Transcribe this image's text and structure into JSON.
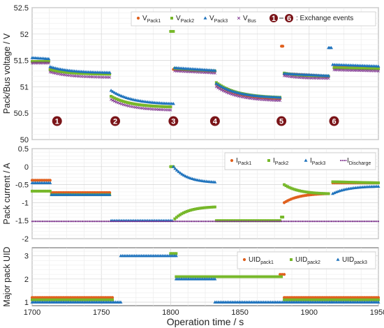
{
  "chart_data": [
    {
      "type": "scatter",
      "ylabel": "Pack/Bus voltage / V",
      "ylim": [
        50,
        52.5
      ],
      "yticks": [
        "50",
        "50.5",
        "51",
        "51.5",
        "52",
        "52.5"
      ],
      "grid": true,
      "legend_position": "top-right",
      "legend_items": [
        {
          "name": "V",
          "sub": "Pack1",
          "marker": "circle",
          "color": "#e0601e"
        },
        {
          "name": "V",
          "sub": "Pack2",
          "marker": "square",
          "color": "#77b82a"
        },
        {
          "name": "V",
          "sub": "Pack3",
          "marker": "triangle",
          "color": "#1f73bd"
        },
        {
          "name": "V",
          "sub": "Bus",
          "marker": "cross",
          "color": "#7a2d8b"
        }
      ],
      "legend_events_range": [
        "1",
        "6"
      ],
      "legend_events_text": ": Exchange events",
      "events": [
        {
          "label": "1",
          "x": 1718,
          "y": 50.35
        },
        {
          "label": "2",
          "x": 1760,
          "y": 50.35
        },
        {
          "label": "3",
          "x": 1802,
          "y": 50.35
        },
        {
          "label": "4",
          "x": 1832,
          "y": 50.35
        },
        {
          "label": "5",
          "x": 1880,
          "y": 50.35
        },
        {
          "label": "6",
          "x": 1918,
          "y": 50.35
        }
      ],
      "series": [
        {
          "name": "VPack1",
          "color": "#e0601e",
          "marker": "circle",
          "segments": [
            {
              "x0": 1700,
              "x1": 1712,
              "y0": 51.48,
              "y1": 51.48
            },
            {
              "x0": 1713,
              "x1": 1756,
              "y0": 51.33,
              "y1": 51.25
            },
            {
              "x0": 1757,
              "x1": 1800,
              "y0": 50.82,
              "y1": 50.62
            },
            {
              "x0": 1802,
              "x1": 1832,
              "y0": 51.33,
              "y1": 51.3
            },
            {
              "x0": 1833,
              "x1": 1879,
              "y0": 51.05,
              "y1": 50.78
            },
            {
              "x0": 1880,
              "x1": 1881,
              "y0": 51.77,
              "y1": 51.77
            },
            {
              "x0": 1882,
              "x1": 1914,
              "y0": 51.25,
              "y1": 51.2
            },
            {
              "x0": 1918,
              "x1": 1950,
              "y0": 51.37,
              "y1": 51.35
            }
          ]
        },
        {
          "name": "VPack2",
          "color": "#77b82a",
          "marker": "square",
          "segments": [
            {
              "x0": 1700,
              "x1": 1712,
              "y0": 51.48,
              "y1": 51.48
            },
            {
              "x0": 1713,
              "x1": 1756,
              "y0": 51.32,
              "y1": 51.24
            },
            {
              "x0": 1757,
              "x1": 1800,
              "y0": 50.82,
              "y1": 50.62
            },
            {
              "x0": 1800,
              "x1": 1802,
              "y0": 52.05,
              "y1": 52.05
            },
            {
              "x0": 1803,
              "x1": 1832,
              "y0": 51.35,
              "y1": 51.3
            },
            {
              "x0": 1833,
              "x1": 1879,
              "y0": 51.08,
              "y1": 50.8
            },
            {
              "x0": 1882,
              "x1": 1914,
              "y0": 51.26,
              "y1": 51.2
            },
            {
              "x0": 1918,
              "x1": 1950,
              "y0": 51.36,
              "y1": 51.34
            }
          ]
        },
        {
          "name": "VPack3",
          "color": "#1f73bd",
          "marker": "triangle",
          "segments": [
            {
              "x0": 1700,
              "x1": 1712,
              "y0": 51.55,
              "y1": 51.53
            },
            {
              "x0": 1713,
              "x1": 1756,
              "y0": 51.38,
              "y1": 51.27
            },
            {
              "x0": 1757,
              "x1": 1802,
              "y0": 50.93,
              "y1": 50.68
            },
            {
              "x0": 1803,
              "x1": 1832,
              "y0": 51.36,
              "y1": 51.31
            },
            {
              "x0": 1833,
              "x1": 1879,
              "y0": 51.06,
              "y1": 50.8
            },
            {
              "x0": 1882,
              "x1": 1914,
              "y0": 51.25,
              "y1": 51.21
            },
            {
              "x0": 1914,
              "x1": 1916,
              "y0": 51.74,
              "y1": 51.74
            },
            {
              "x0": 1917,
              "x1": 1950,
              "y0": 51.42,
              "y1": 51.39
            }
          ]
        },
        {
          "name": "VBus",
          "color": "#7a2d8b",
          "marker": "cross",
          "segments": [
            {
              "x0": 1700,
              "x1": 1712,
              "y0": 51.45,
              "y1": 51.45
            },
            {
              "x0": 1713,
              "x1": 1756,
              "y0": 51.28,
              "y1": 51.18
            },
            {
              "x0": 1757,
              "x1": 1800,
              "y0": 50.76,
              "y1": 50.56
            },
            {
              "x0": 1803,
              "x1": 1832,
              "y0": 51.3,
              "y1": 51.26
            },
            {
              "x0": 1833,
              "x1": 1879,
              "y0": 51.0,
              "y1": 50.74
            },
            {
              "x0": 1882,
              "x1": 1914,
              "y0": 51.21,
              "y1": 51.16
            },
            {
              "x0": 1918,
              "x1": 1950,
              "y0": 51.32,
              "y1": 51.3
            }
          ]
        }
      ]
    },
    {
      "type": "scatter",
      "ylabel": "Pack current / A",
      "ylim": [
        -2,
        0.5
      ],
      "yticks": [
        "-2",
        "-1.5",
        "-1",
        "-0.5",
        "0",
        "0.5"
      ],
      "grid": true,
      "legend_position": "top-right",
      "legend_items": [
        {
          "name": "I",
          "sub": "Pack1",
          "marker": "circle",
          "color": "#e0601e"
        },
        {
          "name": "I",
          "sub": "Pack2",
          "marker": "square",
          "color": "#77b82a"
        },
        {
          "name": "I",
          "sub": "Pack3",
          "marker": "triangle",
          "color": "#1f73bd"
        },
        {
          "name": "I",
          "sub": "Discharge",
          "marker": "dotted",
          "color": "#7a2d8b"
        }
      ],
      "series": [
        {
          "name": "IPack1",
          "color": "#e0601e",
          "marker": "circle",
          "segments": [
            {
              "x0": 1700,
              "x1": 1713,
              "y0": -0.38,
              "y1": -0.38
            },
            {
              "x0": 1714,
              "x1": 1756,
              "y0": -0.72,
              "y1": -0.72
            },
            {
              "x0": 1880,
              "x1": 1881,
              "y0": 0.0,
              "y1": 0.0
            },
            {
              "x0": 1882,
              "x1": 1914,
              "y0": -1.0,
              "y1": -0.75
            },
            {
              "x0": 1917,
              "x1": 1950,
              "y0": -0.45,
              "y1": -0.45
            }
          ]
        },
        {
          "name": "IPack2",
          "color": "#77b82a",
          "marker": "square",
          "segments": [
            {
              "x0": 1700,
              "x1": 1713,
              "y0": -0.68,
              "y1": -0.68
            },
            {
              "x0": 1714,
              "x1": 1756,
              "y0": -0.78,
              "y1": -0.78
            },
            {
              "x0": 1800,
              "x1": 1802,
              "y0": 0.0,
              "y1": 0.0
            },
            {
              "x0": 1803,
              "x1": 1832,
              "y0": -1.45,
              "y1": -1.12
            },
            {
              "x0": 1833,
              "x1": 1879,
              "y0": -1.5,
              "y1": -1.5
            },
            {
              "x0": 1880,
              "x1": 1881,
              "y0": -1.4,
              "y1": -1.4
            },
            {
              "x0": 1882,
              "x1": 1914,
              "y0": -0.5,
              "y1": -0.75
            },
            {
              "x0": 1917,
              "x1": 1950,
              "y0": -0.42,
              "y1": -0.45
            }
          ]
        },
        {
          "name": "IPack3",
          "color": "#1f73bd",
          "marker": "triangle",
          "segments": [
            {
              "x0": 1700,
              "x1": 1713,
              "y0": -0.45,
              "y1": -0.45
            },
            {
              "x0": 1714,
              "x1": 1756,
              "y0": -0.78,
              "y1": -0.78
            },
            {
              "x0": 1757,
              "x1": 1801,
              "y0": -1.5,
              "y1": -1.5
            },
            {
              "x0": 1802,
              "x1": 1832,
              "y0": 0.0,
              "y1": -0.43
            },
            {
              "x0": 1914,
              "x1": 1916,
              "y0": 0.0,
              "y1": 0.0
            },
            {
              "x0": 1917,
              "x1": 1950,
              "y0": -0.75,
              "y1": -0.55
            }
          ]
        },
        {
          "name": "IDischarge",
          "color": "#7a2d8b",
          "marker": "dot",
          "segments": [
            {
              "x0": 1700,
              "x1": 1950,
              "y0": -1.52,
              "y1": -1.52
            }
          ]
        }
      ]
    },
    {
      "type": "scatter",
      "ylabel": "Major pack UID",
      "xlabel": "Operation time / s",
      "xlim": [
        1700,
        1950
      ],
      "xticks": [
        "1700",
        "1750",
        "1800",
        "1850",
        "1900",
        "1950"
      ],
      "ylim": [
        0.85,
        3.35
      ],
      "yticks": [
        "1",
        "2",
        "3"
      ],
      "grid": true,
      "legend_position": "top-right",
      "legend_items": [
        {
          "name": "UID",
          "sub": "pack1",
          "marker": "circle",
          "color": "#e0601e"
        },
        {
          "name": "UID",
          "sub": "pack2",
          "marker": "square",
          "color": "#77b82a"
        },
        {
          "name": "UID",
          "sub": "pack3",
          "marker": "triangle",
          "color": "#1f73bd"
        }
      ],
      "series": [
        {
          "name": "UIDpack1",
          "color": "#e0601e",
          "marker": "circle",
          "segments": [
            {
              "x0": 1700,
              "x1": 1758,
              "y0": 1.2,
              "y1": 1.2
            },
            {
              "x0": 1879,
              "x1": 1882,
              "y0": 2.2,
              "y1": 2.2
            },
            {
              "x0": 1882,
              "x1": 1950,
              "y0": 1.2,
              "y1": 1.2
            }
          ]
        },
        {
          "name": "UIDpack2",
          "color": "#77b82a",
          "marker": "square",
          "segments": [
            {
              "x0": 1700,
              "x1": 1758,
              "y0": 1.1,
              "y1": 1.1
            },
            {
              "x0": 1800,
              "x1": 1804,
              "y0": 3.1,
              "y1": 3.1
            },
            {
              "x0": 1804,
              "x1": 1880,
              "y0": 2.1,
              "y1": 2.1
            },
            {
              "x0": 1882,
              "x1": 1950,
              "y0": 1.1,
              "y1": 1.1
            }
          ]
        },
        {
          "name": "UIDpack3",
          "color": "#1f73bd",
          "marker": "triangle",
          "segments": [
            {
              "x0": 1700,
              "x1": 1764,
              "y0": 1.0,
              "y1": 1.0
            },
            {
              "x0": 1764,
              "x1": 1804,
              "y0": 3.0,
              "y1": 3.0
            },
            {
              "x0": 1804,
              "x1": 1832,
              "y0": 2.0,
              "y1": 2.0
            },
            {
              "x0": 1832,
              "x1": 1916,
              "y0": 1.0,
              "y1": 1.0
            },
            {
              "x0": 1916,
              "x1": 1950,
              "y0": 1.0,
              "y1": 1.0
            }
          ]
        }
      ]
    }
  ]
}
